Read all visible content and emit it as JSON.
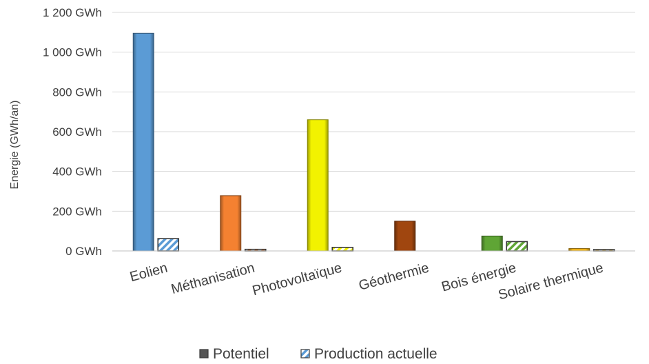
{
  "chart_data": {
    "type": "bar",
    "ylabel": "Energie (GWh/an)",
    "ylim": [
      0,
      1200
    ],
    "yticks": [
      0,
      200,
      400,
      600,
      800,
      1000,
      1200
    ],
    "ytick_labels": [
      "0 GWh",
      "200 GWh",
      "400 GWh",
      "600 GWh",
      "800 GWh",
      "1 000 GWh",
      "1 200 GWh"
    ],
    "categories": [
      "Eolien",
      "Méthanisation",
      "Photovoltaïque",
      "Géothermie",
      "Bois énergie",
      "Solaire thermique"
    ],
    "category_colors": [
      "#5b9bd5",
      "#f48131",
      "#f2f200",
      "#a0460f",
      "#5fa535",
      "#f2b418"
    ],
    "series": [
      {
        "name": "Potentiel",
        "values": [
          1095,
          278,
          660,
          150,
          75,
          12
        ]
      },
      {
        "name": "Production actuelle",
        "values": [
          62,
          8,
          18,
          0,
          47,
          5
        ]
      }
    ],
    "legend_position": "bottom",
    "grid": true
  }
}
